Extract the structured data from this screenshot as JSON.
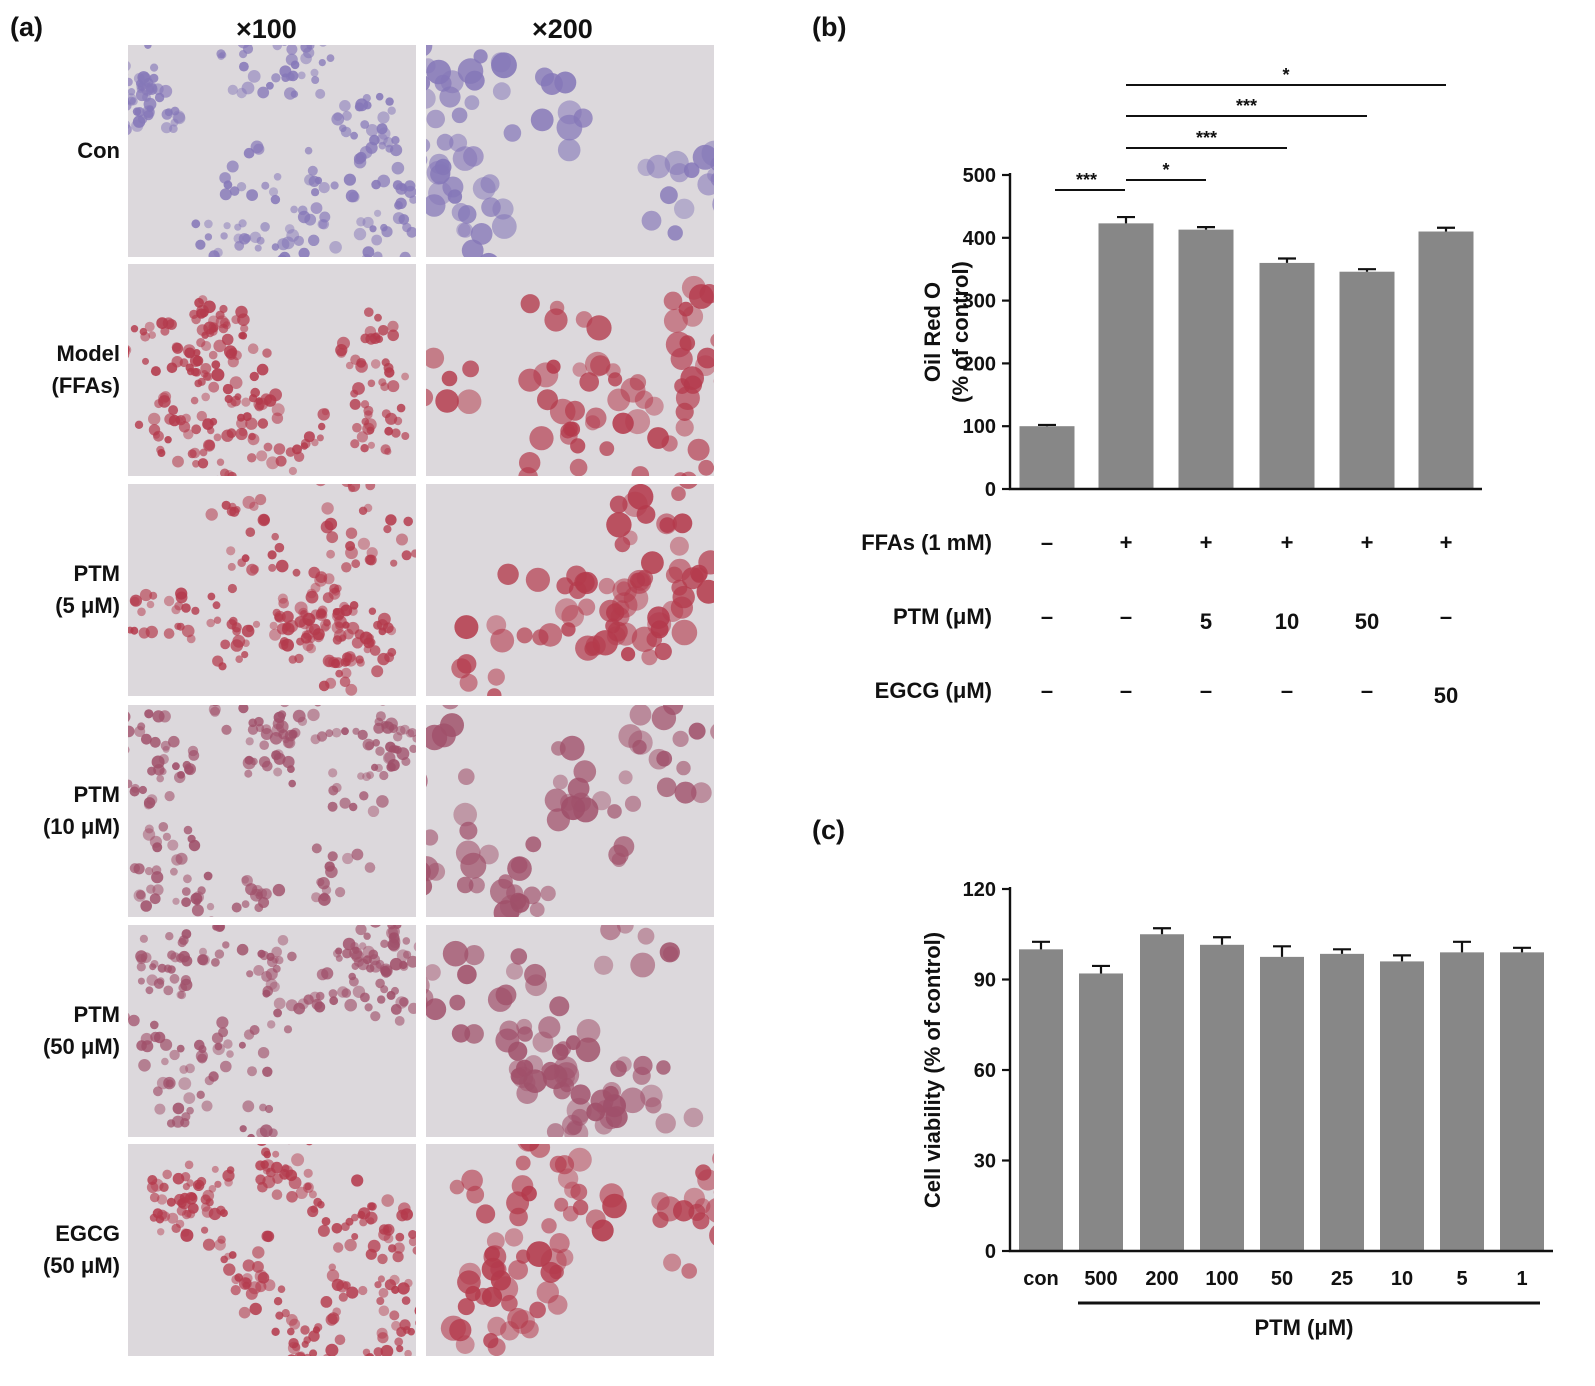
{
  "panel_a": {
    "letter": "(a)",
    "magnifications": [
      "×100",
      "×200"
    ],
    "rows": [
      {
        "label": [
          "Con"
        ],
        "stain": "hematoxylin"
      },
      {
        "label": [
          "Model",
          "(FFAs)"
        ],
        "stain": "oil-red"
      },
      {
        "label": [
          "PTM",
          "(5 μM)"
        ],
        "stain": "oil-red"
      },
      {
        "label": [
          "PTM",
          "(10 μM)"
        ],
        "stain": "oil-red-light"
      },
      {
        "label": [
          "PTM",
          "(50 μM)"
        ],
        "stain": "oil-red-light"
      },
      {
        "label": [
          "EGCG",
          "(50 μM)"
        ],
        "stain": "oil-red"
      }
    ],
    "colors": {
      "hematoxylin": "#8577b8",
      "oil-red": "#b43a4c",
      "oil-red-light": "#a0506a",
      "background": "#dcd8dc"
    }
  },
  "panel_b": {
    "letter": "(b)",
    "conditions": [
      {
        "label": "FFAs (1 mM)",
        "values": [
          "–",
          "+",
          "+",
          "+",
          "+",
          "+"
        ]
      },
      {
        "label": "PTM (μM)",
        "values": [
          "–",
          "–",
          "5",
          "10",
          "50",
          "–"
        ]
      },
      {
        "label": "EGCG (μM)",
        "values": [
          "–",
          "–",
          "–",
          "–",
          "–",
          "50"
        ]
      }
    ]
  },
  "panel_c": {
    "letter": "(c)",
    "group_label": "PTM (μM)"
  },
  "chart_data": [
    {
      "type": "bar",
      "panel": "b",
      "title": "",
      "ylabel": "Oil Red O\n(% of control)",
      "ylim": [
        0,
        500
      ],
      "yticks": [
        "0",
        "100",
        "200",
        "300",
        "400",
        "500"
      ],
      "ytick_values": [
        0,
        100,
        200,
        300,
        400,
        500
      ],
      "values": [
        100,
        423,
        413,
        360,
        346,
        410
      ],
      "errors": [
        2,
        10,
        4,
        7,
        4,
        6
      ],
      "bar_color": "#878787",
      "significance": [
        {
          "from": 0,
          "to": 1,
          "label": "***"
        },
        {
          "from": 1,
          "to": 2,
          "label": "*"
        },
        {
          "from": 1,
          "to": 3,
          "label": "***"
        },
        {
          "from": 1,
          "to": 4,
          "label": "***"
        },
        {
          "from": 1,
          "to": 5,
          "label": "*"
        }
      ]
    },
    {
      "type": "bar",
      "panel": "c",
      "title": "",
      "ylabel": "Cell viability (% of control)",
      "xlabel": "PTM (μM)",
      "categories": [
        "con",
        "500",
        "200",
        "100",
        "50",
        "25",
        "10",
        "5",
        "1"
      ],
      "ylim": [
        0,
        120
      ],
      "yticks": [
        "0",
        "30",
        "60",
        "90",
        "120"
      ],
      "ytick_values": [
        0,
        30,
        60,
        90,
        120
      ],
      "values": [
        100,
        92,
        105,
        101.5,
        97.5,
        98.5,
        96,
        99,
        99
      ],
      "errors": [
        2.5,
        2.5,
        2,
        2.5,
        3.5,
        1.5,
        2,
        3.5,
        1.5
      ],
      "bar_color": "#878787"
    }
  ]
}
